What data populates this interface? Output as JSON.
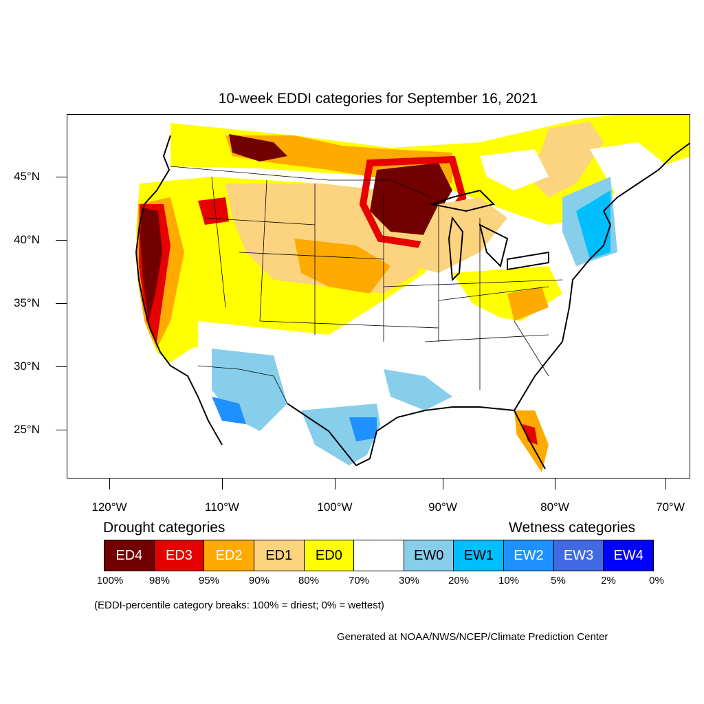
{
  "title": "10-week EDDI categories for September 16, 2021",
  "axes": {
    "lat_labels": [
      "45°N",
      "40°N",
      "35°N",
      "30°N",
      "25°N"
    ],
    "lon_labels": [
      "120°W",
      "110°W",
      "100°W",
      "90°W",
      "80°W",
      "70°W"
    ]
  },
  "legend": {
    "drought_title": "Drought categories",
    "wetness_title": "Wetness categories",
    "categories": [
      {
        "label": "ED4",
        "color": "#730000",
        "text_color": "#ffffff"
      },
      {
        "label": "ED3",
        "color": "#e60000",
        "text_color": "#ffffff"
      },
      {
        "label": "ED2",
        "color": "#ffaa00",
        "text_color": "#ffffff"
      },
      {
        "label": "ED1",
        "color": "#fcd37f",
        "text_color": "#000000"
      },
      {
        "label": "ED0",
        "color": "#ffff00",
        "text_color": "#000000"
      },
      {
        "label": "",
        "color": "#ffffff",
        "text_color": "#000000"
      },
      {
        "label": "EW0",
        "color": "#87ceeb",
        "text_color": "#000000"
      },
      {
        "label": "EW1",
        "color": "#00bfff",
        "text_color": "#000000"
      },
      {
        "label": "EW2",
        "color": "#1e90ff",
        "text_color": "#ffffff"
      },
      {
        "label": "EW3",
        "color": "#4169e1",
        "text_color": "#ffffff"
      },
      {
        "label": "EW4",
        "color": "#0000ff",
        "text_color": "#ffffff"
      }
    ],
    "percentiles": [
      "100%",
      "98%",
      "95%",
      "90%",
      "80%",
      "70%",
      "30%",
      "20%",
      "10%",
      "5%",
      "2%",
      "0%"
    ]
  },
  "note": "(EDDI-percentile category breaks: 100% = driest; 0% = wettest)",
  "credit": "Generated at NOAA/NWS/NCEP/Climate Prediction Center"
}
